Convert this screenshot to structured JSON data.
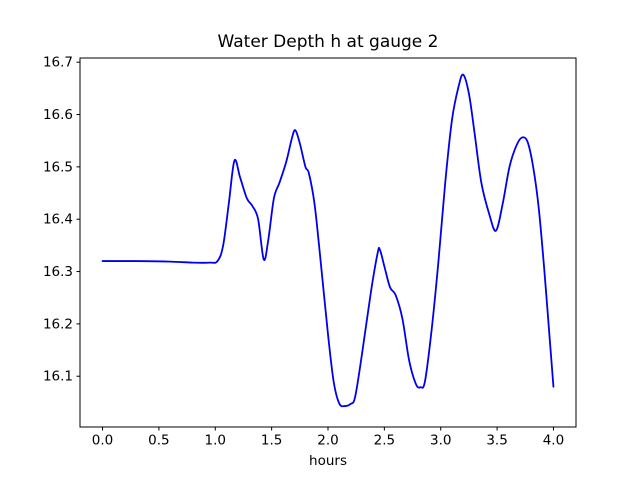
{
  "chart_data": {
    "type": "line",
    "title": "Water Depth h at gauge 2",
    "xlabel": "hours",
    "ylabel": "",
    "grid": false,
    "legend": null,
    "line_color": "#0000ee",
    "axis_color": "#000000",
    "background_color": "#ffffff",
    "xlim": [
      -0.2,
      4.2
    ],
    "ylim": [
      16.003,
      16.708
    ],
    "x_ticks": [
      "0.0",
      "0.5",
      "1.0",
      "1.5",
      "2.0",
      "2.5",
      "3.0",
      "3.5",
      "4.0"
    ],
    "x_tick_values": [
      0.0,
      0.5,
      1.0,
      1.5,
      2.0,
      2.5,
      3.0,
      3.5,
      4.0
    ],
    "y_ticks": [
      "16.1",
      "16.2",
      "16.3",
      "16.4",
      "16.5",
      "16.6",
      "16.7"
    ],
    "y_tick_values": [
      16.1,
      16.2,
      16.3,
      16.4,
      16.5,
      16.6,
      16.7
    ],
    "series": [
      {
        "x": [
          0.0,
          0.3,
          0.6,
          0.8,
          0.95,
          1.02,
          1.07,
          1.12,
          1.17,
          1.22,
          1.28,
          1.33,
          1.38,
          1.43,
          1.47,
          1.52,
          1.57,
          1.63,
          1.68,
          1.71,
          1.75,
          1.8,
          1.83,
          1.88,
          1.93,
          2.0,
          2.05,
          2.1,
          2.15,
          2.2,
          2.24,
          2.3,
          2.38,
          2.44,
          2.46,
          2.5,
          2.55,
          2.6,
          2.66,
          2.72,
          2.78,
          2.82,
          2.86,
          2.92,
          2.98,
          3.04,
          3.1,
          3.16,
          3.2,
          3.25,
          3.3,
          3.36,
          3.43,
          3.49,
          3.55,
          3.61,
          3.67,
          3.72,
          3.77,
          3.82,
          3.87,
          3.92,
          3.96,
          4.0
        ],
        "y": [
          16.32,
          16.32,
          16.319,
          16.317,
          16.317,
          16.32,
          16.35,
          16.43,
          16.512,
          16.48,
          16.44,
          16.425,
          16.4,
          16.323,
          16.36,
          16.44,
          16.47,
          16.51,
          16.555,
          16.57,
          16.545,
          16.5,
          16.488,
          16.43,
          16.33,
          16.18,
          16.09,
          16.048,
          16.043,
          16.047,
          16.06,
          16.14,
          16.26,
          16.335,
          16.342,
          16.31,
          16.27,
          16.255,
          16.21,
          16.13,
          16.085,
          16.079,
          16.09,
          16.19,
          16.32,
          16.47,
          16.59,
          16.655,
          16.676,
          16.64,
          16.565,
          16.47,
          16.41,
          16.378,
          16.43,
          16.5,
          16.54,
          16.556,
          16.548,
          16.5,
          16.42,
          16.3,
          16.19,
          16.08
        ]
      }
    ]
  }
}
